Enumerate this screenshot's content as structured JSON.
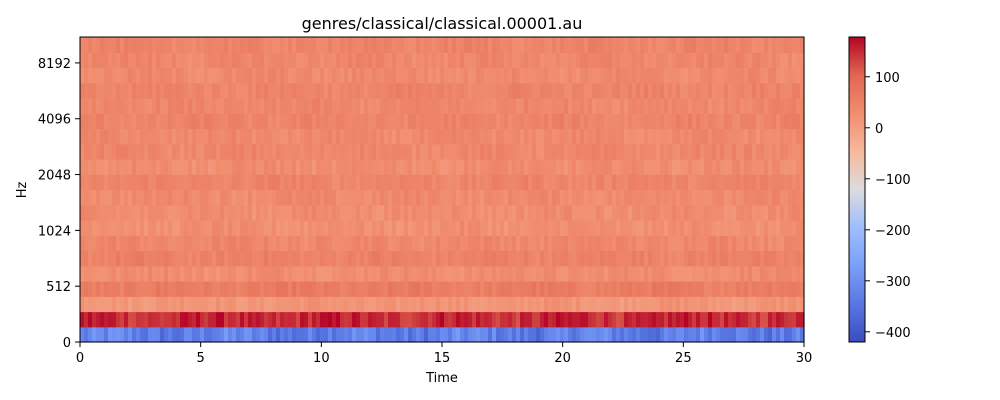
{
  "chart_data": {
    "type": "heatmap",
    "title": "genres/classical/classical.00001.au",
    "xlabel": "Time",
    "ylabel": "Hz",
    "xlim": [
      0,
      30
    ],
    "x_ticks": [
      0,
      5,
      10,
      15,
      20,
      25,
      30
    ],
    "y_ticks": [
      "0",
      "512",
      "1024",
      "2048",
      "4096",
      "8192"
    ],
    "colorbar": {
      "colormap": "coolwarm",
      "range": [
        -420,
        178
      ],
      "ticks": [
        100,
        0,
        -100,
        -200,
        -300,
        -400
      ],
      "tick_labels": [
        "100",
        "0",
        "−100",
        "−200",
        "−300",
        "−400"
      ]
    },
    "bands": [
      {
        "band": 0,
        "mean": -330
      },
      {
        "band": 1,
        "mean": 150
      },
      {
        "band": 2,
        "mean": 15
      },
      {
        "band": 3,
        "mean": 60
      },
      {
        "band": 4,
        "mean": 30
      },
      {
        "band": 5,
        "mean": 50
      },
      {
        "band": 6,
        "mean": 40
      },
      {
        "band": 7,
        "mean": 25
      },
      {
        "band": 8,
        "mean": 30
      },
      {
        "band": 9,
        "mean": 35
      },
      {
        "band": 10,
        "mean": 45
      },
      {
        "band": 11,
        "mean": 30
      },
      {
        "band": 12,
        "mean": 40
      },
      {
        "band": 13,
        "mean": 35
      },
      {
        "band": 14,
        "mean": 45
      },
      {
        "band": 15,
        "mean": 40
      },
      {
        "band": 16,
        "mean": 45
      },
      {
        "band": 17,
        "mean": 35
      },
      {
        "band": 18,
        "mean": 40
      },
      {
        "band": 19,
        "mean": 45
      }
    ]
  }
}
